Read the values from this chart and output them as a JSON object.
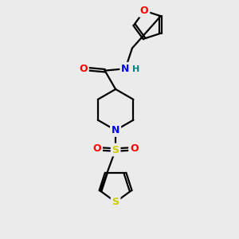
{
  "bg_color": "#ebebeb",
  "atom_colors": {
    "C": "#000000",
    "N": "#0000ff",
    "O": "#ff0000",
    "S_sulfonyl": "#cccc00",
    "S_thio": "#cccc00",
    "H": "#008080"
  },
  "bond_color": "#000000",
  "bond_width": 1.6,
  "figsize": [
    3.0,
    3.0
  ],
  "dpi": 100,
  "xlim": [
    0,
    10
  ],
  "ylim": [
    0,
    12
  ]
}
